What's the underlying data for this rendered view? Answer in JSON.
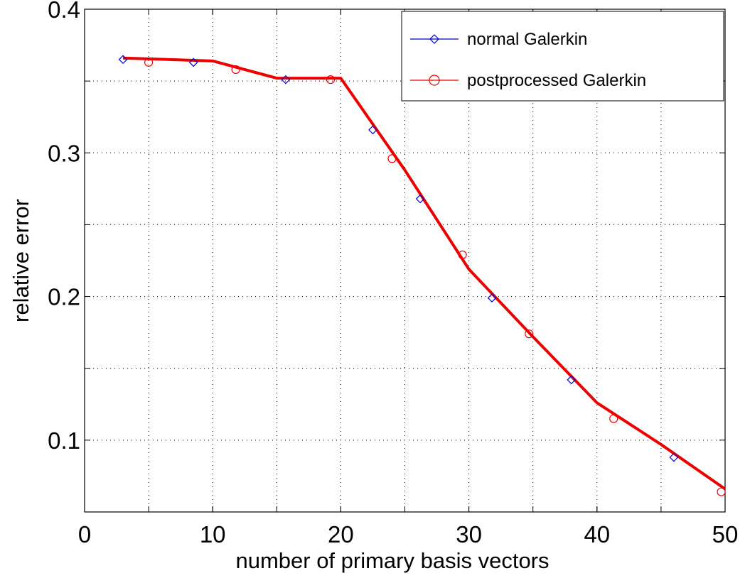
{
  "chart_data": {
    "type": "line",
    "title": "",
    "xlabel": "number of primary basis vectors",
    "ylabel": "relative error",
    "xlim": [
      0,
      50
    ],
    "ylim": [
      0.05,
      0.4
    ],
    "xticks": [
      0,
      10,
      20,
      30,
      40,
      50
    ],
    "yticks_labeled": [
      0.1,
      0.2,
      0.3,
      0.4
    ],
    "ygrid": [
      0.1,
      0.15,
      0.2,
      0.25,
      0.3,
      0.35,
      0.4
    ],
    "xgrid": [
      5,
      10,
      15,
      20,
      25,
      30,
      35,
      40,
      45
    ],
    "grid": true,
    "legend": {
      "position": "top-right",
      "entries": [
        {
          "label": "normal Galerkin",
          "color": "#0000cc",
          "marker": "diamond"
        },
        {
          "label": "postprocessed Galerkin",
          "color": "#ee0000",
          "marker": "circle"
        }
      ]
    },
    "line": {
      "color": "#ee0000",
      "x": [
        3,
        10,
        15,
        20,
        25,
        30,
        35,
        40,
        45,
        50
      ],
      "y": [
        0.366,
        0.364,
        0.352,
        0.352,
        0.288,
        0.219,
        0.172,
        0.126,
        0.097,
        0.066
      ]
    },
    "series": [
      {
        "name": "normal Galerkin",
        "color": "#0000cc",
        "marker": "diamond",
        "x": [
          3,
          8.5,
          15.7,
          22.5,
          26.2,
          31.8,
          38.0,
          46.0
        ],
        "y": [
          0.365,
          0.363,
          0.351,
          0.316,
          0.268,
          0.199,
          0.142,
          0.088
        ]
      },
      {
        "name": "postprocessed Galerkin",
        "color": "#ee0000",
        "marker": "circle",
        "x": [
          5,
          11.8,
          19.2,
          24.0,
          29.5,
          34.7,
          41.3,
          49.7
        ],
        "y": [
          0.363,
          0.358,
          0.351,
          0.296,
          0.229,
          0.174,
          0.115,
          0.064
        ]
      }
    ]
  }
}
